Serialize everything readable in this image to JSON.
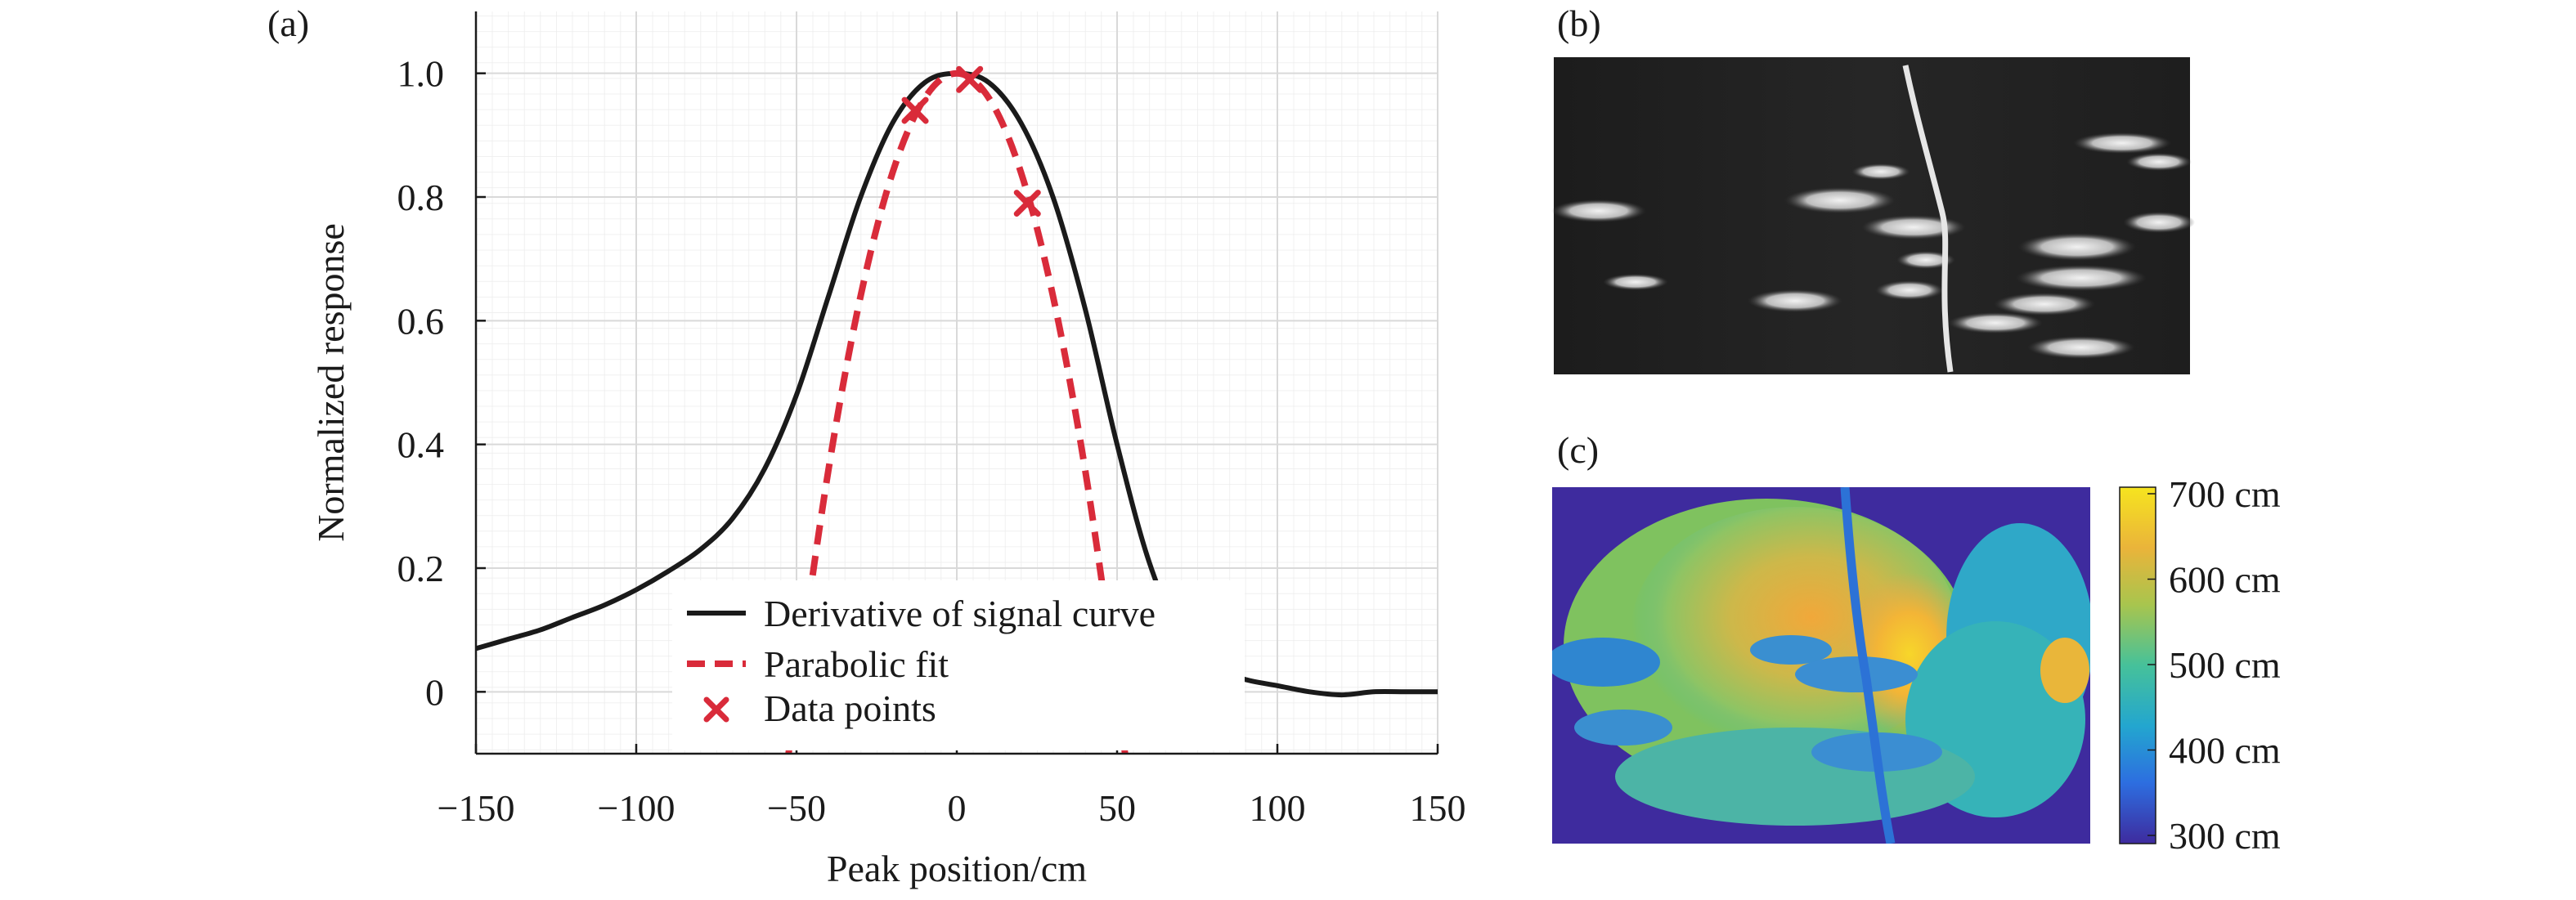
{
  "panels": {
    "a_label": "(a)",
    "b_label": "(b)",
    "c_label": "(c)"
  },
  "chart_data": {
    "type": "line",
    "title": "",
    "xlabel": "Peak position/cm",
    "ylabel": "Normalized response",
    "xlim": [
      -150,
      150
    ],
    "ylim": [
      -0.1,
      1.1
    ],
    "xticks": [
      -150,
      -100,
      -50,
      0,
      50,
      100,
      150
    ],
    "xtick_labels": [
      "−150",
      "−100",
      "−50",
      "0",
      "50",
      "100",
      "150"
    ],
    "yticks": [
      0,
      0.2,
      0.4,
      0.6,
      0.8,
      1.0
    ],
    "ytick_labels": [
      "0",
      "0.2",
      "0.4",
      "0.6",
      "0.8",
      "1.0"
    ],
    "grid": true,
    "legend_position": "bottom-center",
    "series": [
      {
        "name": "Derivative of signal curve",
        "style": "solid",
        "color": "#1a1a1a",
        "x": [
          -150,
          -140,
          -130,
          -120,
          -110,
          -100,
          -90,
          -80,
          -70,
          -60,
          -50,
          -40,
          -30,
          -20,
          -10,
          0,
          10,
          20,
          30,
          40,
          50,
          60,
          70,
          80,
          90,
          100,
          110,
          120,
          130,
          140,
          150
        ],
        "y": [
          0.07,
          0.085,
          0.1,
          0.12,
          0.14,
          0.165,
          0.195,
          0.23,
          0.28,
          0.36,
          0.48,
          0.64,
          0.8,
          0.92,
          0.985,
          1.0,
          0.985,
          0.92,
          0.8,
          0.62,
          0.4,
          0.21,
          0.09,
          0.04,
          0.02,
          0.01,
          0.0,
          -0.005,
          0.0,
          0.0,
          0.0
        ]
      },
      {
        "name": "Parabolic fit",
        "style": "dashed",
        "color": "#d92b3a",
        "x": [
          -55,
          -50,
          -40,
          -30,
          -20,
          -10,
          0,
          10,
          20,
          30,
          40,
          50,
          55
        ],
        "y": [
          -0.21,
          0.0,
          0.36,
          0.64,
          0.84,
          0.96,
          1.0,
          0.96,
          0.84,
          0.64,
          0.36,
          0.0,
          -0.21
        ]
      },
      {
        "name": "Data points",
        "style": "markers",
        "color": "#d92b3a",
        "x": [
          -13,
          4,
          22
        ],
        "y": [
          0.94,
          0.99,
          0.79
        ]
      }
    ]
  },
  "colorbar": {
    "labels": [
      "700 cm",
      "600 cm",
      "500 cm",
      "400 cm",
      "300 cm"
    ],
    "values": [
      700,
      600,
      500,
      400,
      300
    ],
    "min": 300,
    "max": 700,
    "colors": [
      "#3e2b9e",
      "#2d6ee0",
      "#23a6cf",
      "#46c19a",
      "#a8c54e",
      "#eab43a",
      "#f6e41f"
    ]
  }
}
